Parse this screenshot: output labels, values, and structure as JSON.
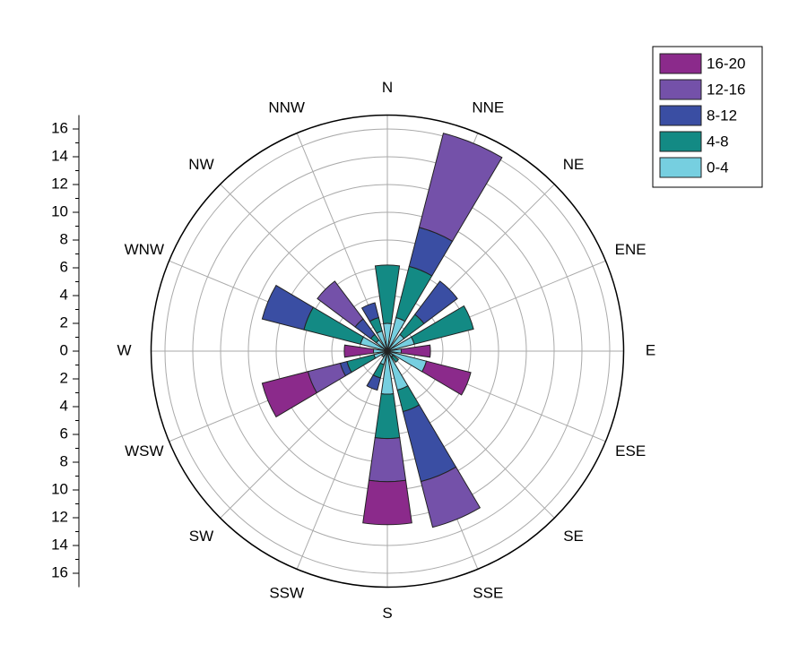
{
  "chart_data": {
    "type": "windrose",
    "categories": [
      "N",
      "NNE",
      "NE",
      "ENE",
      "E",
      "ESE",
      "SE",
      "SSE",
      "S",
      "SSW",
      "SW",
      "WSW",
      "W",
      "WNW",
      "NW",
      "NNW"
    ],
    "series": [
      {
        "name": "0-4",
        "color": "#76cfe0",
        "values": [
          2,
          2.5,
          1.5,
          2,
          1,
          2.9,
          0.5,
          2.9,
          3.1,
          1,
          0.5,
          1,
          1,
          2,
          1,
          1.5
        ]
      },
      {
        "name": "4-8",
        "color": "#138a84",
        "values": [
          4.2,
          3.8,
          1.8,
          4.4,
          0,
          0,
          0.5,
          1.6,
          3.2,
          1,
          0,
          2,
          0,
          4.2,
          0.5,
          1
        ]
      },
      {
        "name": "8-12",
        "color": "#3a4ea3",
        "values": [
          0,
          2.9,
          3,
          0,
          0,
          0,
          0,
          5.2,
          0,
          0.9,
          0,
          0.5,
          0,
          3.1,
          1.4,
          1.1
        ]
      },
      {
        "name": "12-16",
        "color": "#7451a9",
        "values": [
          0,
          7,
          0,
          0,
          0,
          0,
          0,
          3.4,
          3.1,
          0,
          0,
          2.4,
          0,
          0,
          3.4,
          0
        ]
      },
      {
        "name": "16-20",
        "color": "#8b2a8b",
        "values": [
          0,
          0,
          0,
          0,
          2.1,
          3.3,
          0,
          0,
          3.1,
          0,
          0,
          3.4,
          2.1,
          0,
          0,
          0
        ]
      }
    ],
    "ylim": [
      0,
      17
    ],
    "yticks": [
      0,
      2,
      4,
      6,
      8,
      10,
      12,
      14,
      16
    ],
    "grid": true,
    "legend": "top-right"
  }
}
